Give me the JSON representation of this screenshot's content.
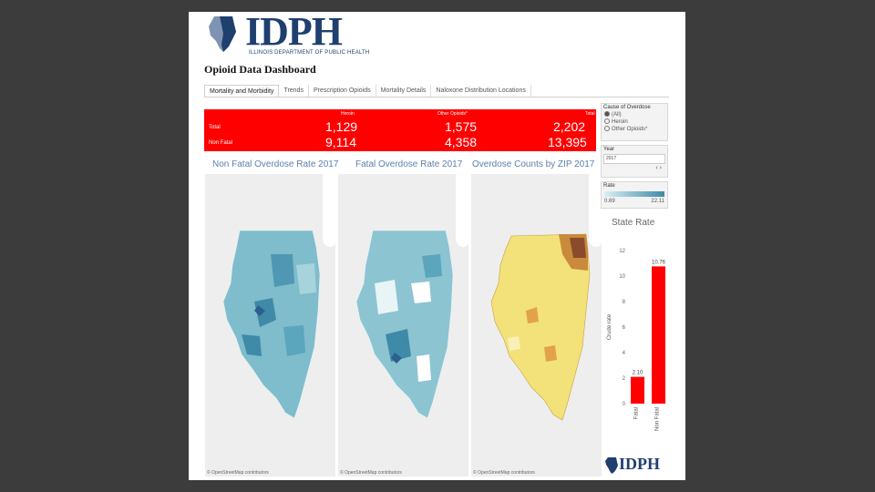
{
  "logo": {
    "text": "IDPH",
    "subtitle": "ILLINOIS DEPARTMENT OF PUBLIC HEALTH"
  },
  "dashboard_title": "Opioid Data Dashboard",
  "tabs": [
    {
      "label": "Mortality and Morbidity",
      "active": true
    },
    {
      "label": "Trends"
    },
    {
      "label": "Prescription Opioids"
    },
    {
      "label": "Mortality Details"
    },
    {
      "label": "Naloxone Distribution Locations"
    }
  ],
  "summary": {
    "headers": [
      "Heroin",
      "Other Opioids*",
      "Total"
    ],
    "rows": [
      {
        "label": "Total",
        "values": [
          "1,129",
          "1,575",
          "2,202"
        ]
      },
      {
        "label": "Non Fatal",
        "values": [
          "9,114",
          "4,358",
          "13,395"
        ]
      }
    ]
  },
  "maps": [
    {
      "title": "Non Fatal Overdose Rate 2017",
      "credit": "© OpenStreetMap contributors"
    },
    {
      "title": "Fatal Overdose Rate 2017",
      "credit": "© OpenStreetMap contributors"
    },
    {
      "title": "Overdose Counts by ZIP 2017",
      "credit": "© OpenStreetMap contributors"
    }
  ],
  "filters": {
    "cause_title": "Cause of Overdose",
    "cause_options": [
      {
        "label": "(All)",
        "selected": true
      },
      {
        "label": "Heroin",
        "selected": false
      },
      {
        "label": "Other Opioids*",
        "selected": false
      }
    ],
    "year_title": "Year",
    "year_value": "2017",
    "rate_title": "Rate",
    "rate_min": "0.69",
    "rate_max": "22.11"
  },
  "colors": {
    "red": "#ff0000",
    "map_fill": "#7fbccc",
    "map_dark": "#3e8aa8",
    "zip_fill": "#f3e27a",
    "title_blue": "#5b7fae"
  },
  "chart_data": {
    "type": "bar",
    "title": "State Rate",
    "ylabel": "Crude rate",
    "categories": [
      "Fatal",
      "Non Fatal"
    ],
    "values": [
      2.1,
      10.76
    ],
    "data_labels": [
      "2.10",
      "10.76"
    ],
    "yticks": [
      "0",
      "2",
      "4",
      "6",
      "8",
      "10",
      "12"
    ],
    "ylim": [
      0,
      12
    ],
    "color": "#ff0000"
  }
}
